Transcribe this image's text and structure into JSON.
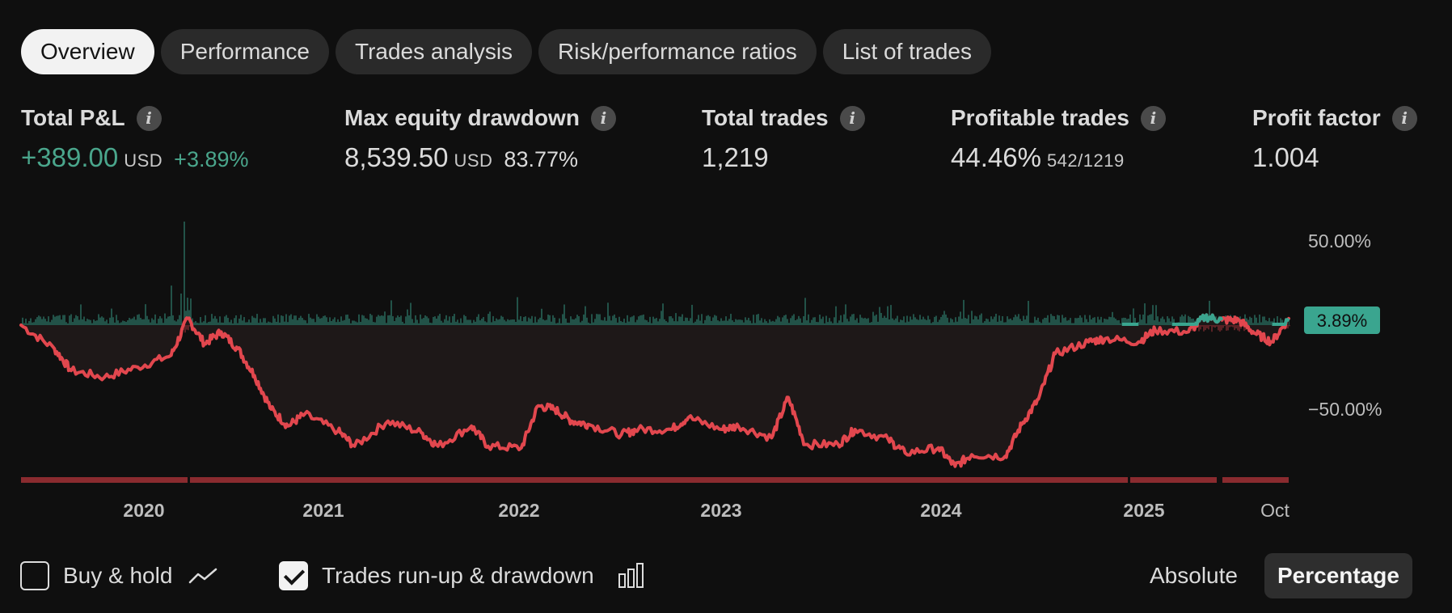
{
  "tabs": [
    {
      "label": "Overview",
      "active": true
    },
    {
      "label": "Performance",
      "active": false
    },
    {
      "label": "Trades analysis",
      "active": false
    },
    {
      "label": "Risk/performance ratios",
      "active": false
    },
    {
      "label": "List of trades",
      "active": false
    }
  ],
  "metrics": {
    "total_pl": {
      "label": "Total P&L",
      "value": "+389.00",
      "unit": "USD",
      "pct": "+3.89%"
    },
    "max_drawdown": {
      "label": "Max equity drawdown",
      "value": "8,539.50",
      "unit": "USD",
      "pct": "83.77%"
    },
    "total_trades": {
      "label": "Total trades",
      "value": "1,219"
    },
    "profitable_trades": {
      "label": "Profitable trades",
      "value": "44.46%",
      "fraction": "542/1219"
    },
    "profit_factor": {
      "label": "Profit factor",
      "value": "1.004"
    }
  },
  "info_glyph": "i",
  "chart_data": {
    "type": "line",
    "x_tick_labels": [
      "2020",
      "2021",
      "2022",
      "2023",
      "2024",
      "2025",
      "Oct"
    ],
    "y_tick_labels": [
      "50.00%",
      "−50.00%"
    ],
    "ylim": [
      -83.77,
      50
    ],
    "current_value_label": "3.89%",
    "series": [
      {
        "dates": [
          "2019-06",
          "2019-08",
          "2019-09",
          "2019-11",
          "2020-01",
          "2020-03",
          "2020-04",
          "2020-05",
          "2020-06",
          "2020-07",
          "2020-08",
          "2020-09",
          "2020-10",
          "2020-11",
          "2021-01",
          "2021-02",
          "2021-04",
          "2021-06",
          "2021-07",
          "2021-09",
          "2021-10",
          "2021-12",
          "2022-01",
          "2022-02",
          "2022-03",
          "2022-04",
          "2022-06",
          "2022-07",
          "2022-09",
          "2022-10",
          "2022-12",
          "2023-01",
          "2023-03",
          "2023-04",
          "2023-05",
          "2023-07",
          "2023-08",
          "2023-10",
          "2023-11",
          "2024-01",
          "2024-02",
          "2024-03",
          "2024-05",
          "2024-06",
          "2024-07",
          "2024-08",
          "2024-10",
          "2024-11",
          "2025-01",
          "2025-02",
          "2025-04",
          "2025-05",
          "2025-06",
          "2025-07",
          "2025-08",
          "2025-09",
          "2025-10"
        ],
        "values": [
          0,
          -14,
          -27,
          -31,
          -25,
          -18,
          4,
          -11,
          -4,
          -14,
          -30,
          -50,
          -60,
          -53,
          -63,
          -72,
          -57,
          -64,
          -72,
          -60,
          -72,
          -73,
          -48,
          -50,
          -57,
          -59,
          -65,
          -62,
          -62,
          -55,
          -62,
          -60,
          -67,
          -43,
          -71,
          -71,
          -62,
          -68,
          -76,
          -73,
          -84,
          -77,
          -78,
          -59,
          -44,
          -17,
          -10,
          -8,
          -10,
          -3,
          -4,
          5,
          3,
          3,
          -5,
          -10,
          3.89
        ],
        "color": "#e2474e"
      }
    ],
    "green_segments": [
      {
        "start": "2024-12",
        "end": "2025-01"
      },
      {
        "start": "2025-03",
        "end": "2025-06"
      },
      {
        "start": "2025-09",
        "end": "2025-10"
      }
    ],
    "fill_color": "#1e1818",
    "runup_color": "#3aa58f",
    "drawdown_bar_color": "#e2474e",
    "grid": false
  },
  "bottom": {
    "buy_hold_label": "Buy & hold",
    "buy_hold_checked": false,
    "runup_label": "Trades run-up & drawdown",
    "runup_checked": true,
    "absolute_label": "Absolute",
    "percentage_label": "Percentage",
    "line_chart_icon": "line-chart-icon",
    "bar_chart_icon": "bar-chart-icon"
  }
}
